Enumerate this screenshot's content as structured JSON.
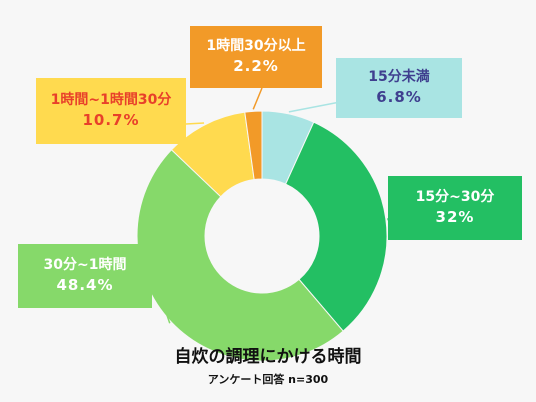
{
  "chart_data": {
    "type": "pie",
    "title": "自炊の調理にかける時間",
    "subtitle": "アンケート回答 n=300",
    "slices": [
      {
        "label": "15分未満",
        "value": 6.8,
        "value_label": "6.8%",
        "color": "#a9e4e3"
      },
      {
        "label": "15分~30分",
        "value": 32,
        "value_label": "32%",
        "color": "#23bf63"
      },
      {
        "label": "30分~1時間",
        "value": 48.4,
        "value_label": "48.4%",
        "color": "#86d96a"
      },
      {
        "label": "1時間~1時間30分",
        "value": 10.7,
        "value_label": "10.7%",
        "color": "#ffda4f"
      },
      {
        "label": "1時間30分以上",
        "value": 2.2,
        "value_label": "2.2%",
        "color": "#f29a28"
      }
    ]
  }
}
